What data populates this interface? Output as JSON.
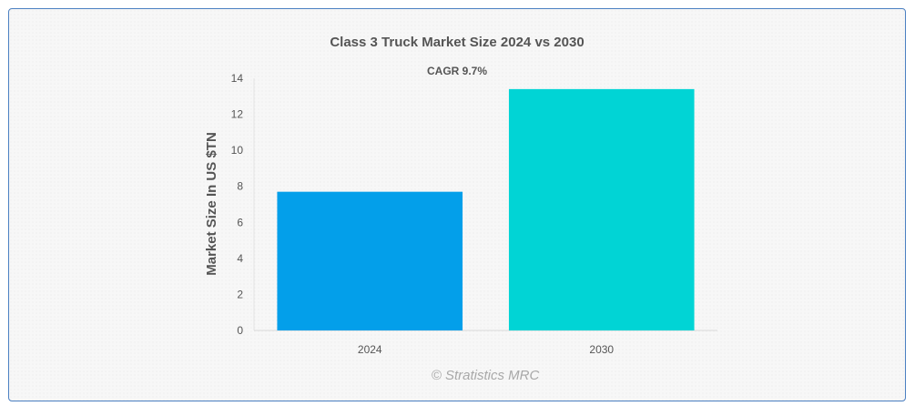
{
  "chart_data": {
    "type": "bar",
    "title": "Class 3 Truck Market Size 2024 vs 2030",
    "subtitle": "CAGR 9.7%",
    "categories": [
      "2024",
      "2030"
    ],
    "values": [
      7.7,
      13.4
    ],
    "xlabel": "",
    "ylabel": "Market Size In US $TN",
    "ylim": [
      0,
      14
    ],
    "yticks": [
      "0",
      "2",
      "4",
      "6",
      "8",
      "10",
      "12",
      "14"
    ],
    "colors": [
      "#039fea",
      "#01d4d5"
    ],
    "grid": false,
    "legend": "none"
  },
  "credit": "© Stratistics MRC"
}
